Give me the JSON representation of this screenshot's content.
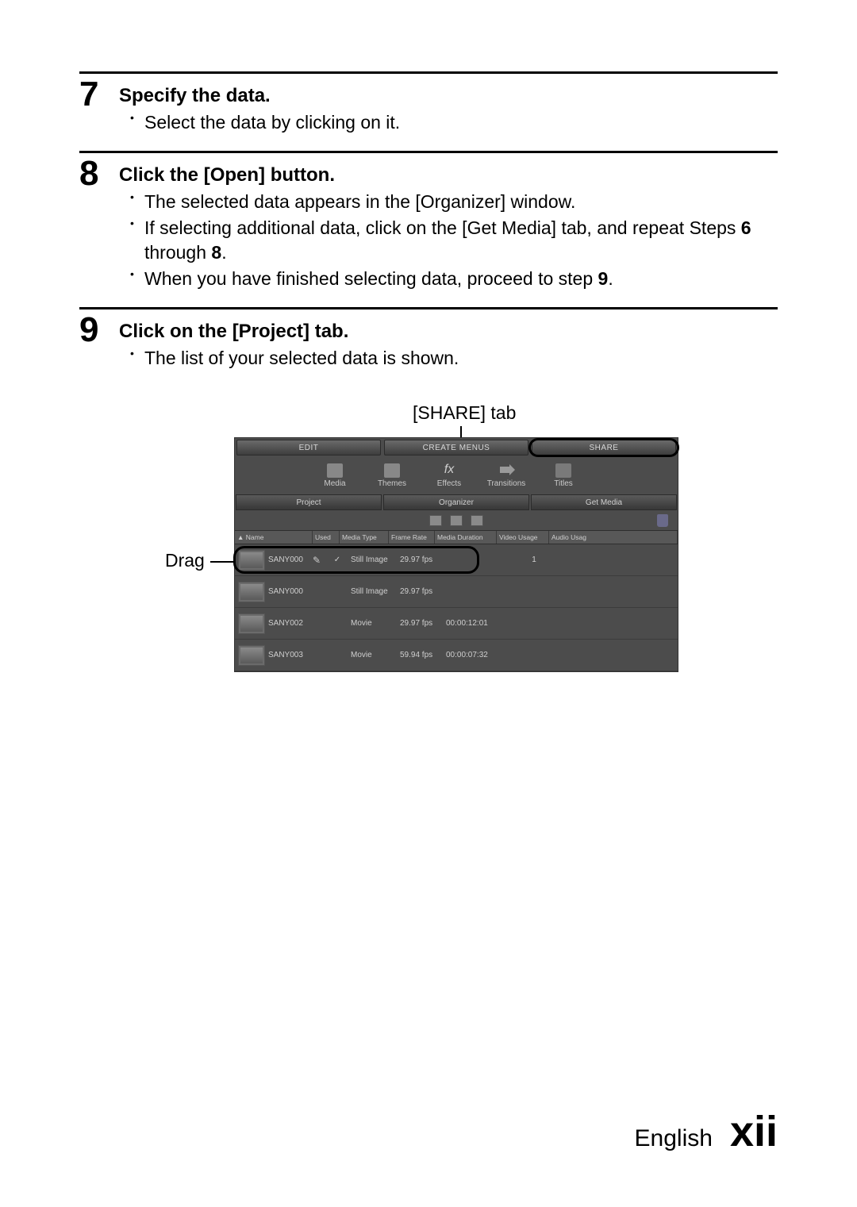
{
  "steps": [
    {
      "num": "7",
      "title": "Specify the data.",
      "bullets_html": [
        "Select the data by clicking on it."
      ]
    },
    {
      "num": "8",
      "title": "Click the [Open] button.",
      "bullets_html": [
        "The selected data appears in the [Organizer] window.",
        "If selecting additional data, click on the [Get Media] tab, and repeat Steps <b>6</b> through <b>8</b>.",
        "When you have finished selecting data, proceed to step <b>9</b>."
      ]
    },
    {
      "num": "9",
      "title": "Click on the [Project] tab.",
      "bullets_html": [
        "The list of your selected data is shown."
      ]
    }
  ],
  "annotations": {
    "share": "[SHARE] tab",
    "drag": "Drag"
  },
  "ui": {
    "topTabs": [
      "EDIT",
      "CREATE MENUS",
      "SHARE"
    ],
    "toolbar": [
      {
        "label": "Media",
        "icon": "media"
      },
      {
        "label": "Themes",
        "icon": "themes"
      },
      {
        "label": "Effects",
        "icon": "fx"
      },
      {
        "label": "Transitions",
        "icon": "arrow"
      },
      {
        "label": "Titles",
        "icon": "titles"
      }
    ],
    "subTabs": [
      "Project",
      "Organizer",
      "Get Media"
    ],
    "columns": [
      "▲ Name",
      "Used",
      "Media Type",
      "Frame Rate",
      "Media Duration",
      "Video Usage",
      "Audio Usag"
    ],
    "rows": [
      {
        "name": "SANY000",
        "used": "✓",
        "type": "Still Image",
        "rate": "29.97 fps",
        "dur": "",
        "vuse": "1",
        "highlight": true
      },
      {
        "name": "SANY000",
        "used": "",
        "type": "Still Image",
        "rate": "29.97 fps",
        "dur": "",
        "vuse": "",
        "highlight": false
      },
      {
        "name": "SANY002",
        "used": "",
        "type": "Movie",
        "rate": "29.97 fps",
        "dur": "00:00:12:01",
        "vuse": "",
        "highlight": false
      },
      {
        "name": "SANY003",
        "used": "",
        "type": "Movie",
        "rate": "59.94 fps",
        "dur": "00:00:07:32",
        "vuse": "",
        "highlight": false
      }
    ],
    "colors": {
      "panel_bg": "#4c4c4c",
      "tab_bg_top": "#6a6a6a",
      "tab_bg_bot": "#3d3d3d",
      "text_light": "#d0d0d0",
      "border_dark": "#2b2b2b"
    }
  },
  "footer": {
    "language": "English",
    "page": "xii"
  }
}
